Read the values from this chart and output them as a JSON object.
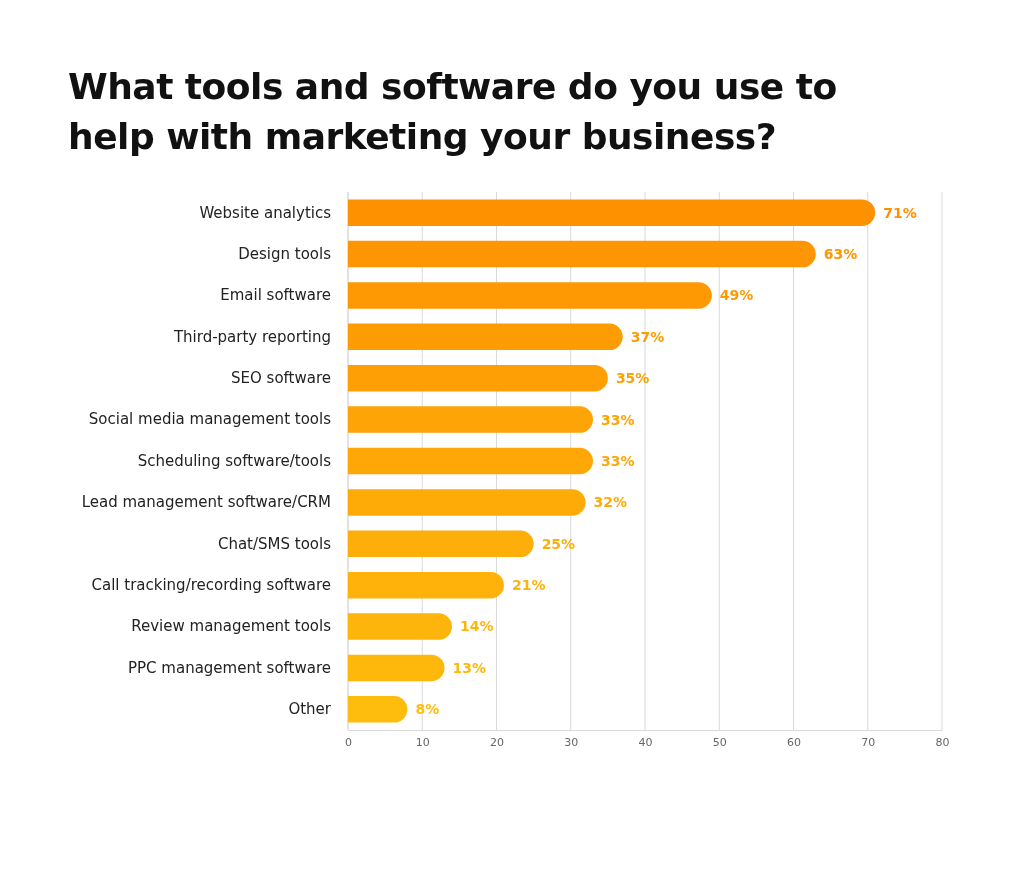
{
  "chart_data": {
    "type": "bar",
    "orientation": "horizontal",
    "title": "What tools and software do you use to help with marketing your business?",
    "categories": [
      "Website analytics",
      "Design tools",
      "Email software",
      "Third-party reporting",
      "SEO software",
      "Social media management tools",
      "Scheduling software/tools",
      "Lead management software/CRM",
      "Chat/SMS tools",
      "Call tracking/recording software",
      "Review management tools",
      "PPC management software",
      "Other"
    ],
    "values": [
      71,
      63,
      49,
      37,
      35,
      33,
      33,
      32,
      25,
      21,
      14,
      13,
      8
    ],
    "value_labels": [
      "71%",
      "63%",
      "49%",
      "37%",
      "35%",
      "33%",
      "33%",
      "32%",
      "25%",
      "21%",
      "14%",
      "13%",
      "8%"
    ],
    "colors": [
      "#fe9100",
      "#fe9502",
      "#fe9903",
      "#fe9c04",
      "#fea005",
      "#fea406",
      "#fea707",
      "#feab08",
      "#feae09",
      "#feb20a",
      "#feb50b",
      "#feb80c",
      "#febc0d"
    ],
    "xlim": [
      0,
      80
    ],
    "xticks": [
      0,
      10,
      20,
      30,
      40,
      50,
      60,
      70,
      80
    ],
    "grid": "x"
  }
}
